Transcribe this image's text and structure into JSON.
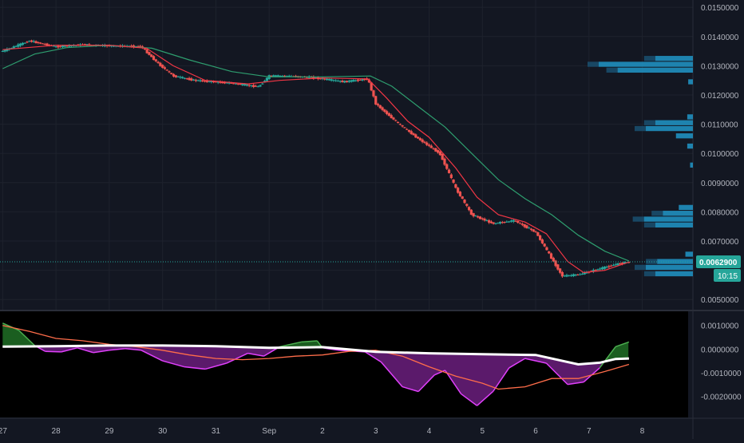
{
  "colors": {
    "background": "#131722",
    "indicator_background": "#000000",
    "up": "#26a69a",
    "down": "#ef5350",
    "ma_fast": "#f23645",
    "ma_slow": "#2e9e6f",
    "volume_profile": "#2196c8",
    "osc_main": "#ffffff",
    "osc_fill_neg": "#5b1a6b",
    "osc_fill_pos": "#1b5e20",
    "osc_line_neg": "#e040fb",
    "osc_line_pos": "#4caf50",
    "osc_signal": "#ff6d4a",
    "axis_text": "#b2b5be",
    "price_label_bg": "#26a69a"
  },
  "chart_data": [
    {
      "type": "candlestick",
      "name": "price",
      "price_axis": {
        "ticks": [
          0.005,
          0.006,
          0.007,
          0.008,
          0.009,
          0.01,
          0.011,
          0.012,
          0.013,
          0.014,
          0.015
        ],
        "tick_labels": [
          "0.0050000",
          "",
          "0.0070000",
          "0.0080000",
          "0.0090000",
          "0.0100000",
          "0.0110000",
          "0.0120000",
          "0.0130000",
          "0.0140000",
          "0.0150000"
        ],
        "range": [
          0.00465,
          0.01525
        ]
      },
      "last_price": 0.00629,
      "last_price_label": "0.0062900",
      "countdown_label": "10:15",
      "x_axis": {
        "labels": [
          "27",
          "28",
          "29",
          "30",
          "31",
          "Sep",
          "2",
          "3",
          "4",
          "5",
          "6",
          "7",
          "8"
        ],
        "label_day_index": [
          0,
          1,
          2,
          3,
          4,
          5,
          6,
          7,
          8,
          9,
          10,
          11,
          12
        ],
        "day_range": [
          -0.05,
          12.95
        ]
      },
      "path_points": [
        [
          0.0,
          0.0135
        ],
        [
          0.5,
          0.01385
        ],
        [
          1.0,
          0.01365
        ],
        [
          1.5,
          0.01372
        ],
        [
          2.0,
          0.01368
        ],
        [
          2.6,
          0.01366
        ],
        [
          2.9,
          0.0131
        ],
        [
          3.2,
          0.01265
        ],
        [
          3.6,
          0.0125
        ],
        [
          4.3,
          0.0124
        ],
        [
          4.8,
          0.01228
        ],
        [
          5.0,
          0.01265
        ],
        [
          5.3,
          0.01265
        ],
        [
          5.8,
          0.0126
        ],
        [
          6.4,
          0.01245
        ],
        [
          6.85,
          0.01255
        ],
        [
          7.0,
          0.0117
        ],
        [
          7.4,
          0.01105
        ],
        [
          7.8,
          0.0105
        ],
        [
          8.2,
          0.01
        ],
        [
          8.5,
          0.0088
        ],
        [
          8.8,
          0.0079
        ],
        [
          9.2,
          0.0076
        ],
        [
          9.6,
          0.0077
        ],
        [
          10.0,
          0.0073
        ],
        [
          10.3,
          0.0064
        ],
        [
          10.5,
          0.0058
        ],
        [
          10.8,
          0.00585
        ],
        [
          11.2,
          0.00605
        ],
        [
          11.5,
          0.0062
        ],
        [
          11.75,
          0.00629
        ]
      ],
      "ma_fast_points": [
        [
          0.0,
          0.01355
        ],
        [
          1.0,
          0.0137
        ],
        [
          2.0,
          0.0137
        ],
        [
          2.7,
          0.0136
        ],
        [
          3.2,
          0.013
        ],
        [
          3.8,
          0.0125
        ],
        [
          4.6,
          0.01238
        ],
        [
          5.2,
          0.0125
        ],
        [
          6.0,
          0.01258
        ],
        [
          6.85,
          0.01255
        ],
        [
          7.2,
          0.0119
        ],
        [
          7.6,
          0.0111
        ],
        [
          8.0,
          0.01055
        ],
        [
          8.5,
          0.0095
        ],
        [
          8.9,
          0.0085
        ],
        [
          9.3,
          0.0079
        ],
        [
          9.8,
          0.00765
        ],
        [
          10.2,
          0.00725
        ],
        [
          10.6,
          0.0063
        ],
        [
          10.9,
          0.00592
        ],
        [
          11.3,
          0.006
        ],
        [
          11.75,
          0.00628
        ]
      ],
      "ma_slow_points": [
        [
          0.0,
          0.0129
        ],
        [
          0.6,
          0.0134
        ],
        [
          1.2,
          0.01362
        ],
        [
          2.0,
          0.0137
        ],
        [
          2.8,
          0.0136
        ],
        [
          3.5,
          0.0132
        ],
        [
          4.3,
          0.0128
        ],
        [
          5.0,
          0.01262
        ],
        [
          6.0,
          0.01262
        ],
        [
          6.9,
          0.01265
        ],
        [
          7.3,
          0.0123
        ],
        [
          7.8,
          0.0116
        ],
        [
          8.3,
          0.0109
        ],
        [
          8.8,
          0.01
        ],
        [
          9.3,
          0.0091
        ],
        [
          9.8,
          0.00845
        ],
        [
          10.3,
          0.0079
        ],
        [
          10.8,
          0.0072
        ],
        [
          11.3,
          0.00665
        ],
        [
          11.75,
          0.00632
        ]
      ],
      "volume_profile": [
        {
          "price": 0.01325,
          "value": 0.4
        },
        {
          "price": 0.01305,
          "value": 1.0
        },
        {
          "price": 0.01285,
          "value": 0.8
        },
        {
          "price": 0.01245,
          "value": 0.05
        },
        {
          "price": 0.01125,
          "value": 0.06
        },
        {
          "price": 0.01105,
          "value": 0.4
        },
        {
          "price": 0.01085,
          "value": 0.5
        },
        {
          "price": 0.0106,
          "value": 0.18
        },
        {
          "price": 0.01025,
          "value": 0.06
        },
        {
          "price": 0.0096,
          "value": 0.03
        },
        {
          "price": 0.00815,
          "value": 0.15
        },
        {
          "price": 0.00795,
          "value": 0.32
        },
        {
          "price": 0.00775,
          "value": 0.52
        },
        {
          "price": 0.00755,
          "value": 0.4
        },
        {
          "price": 0.00655,
          "value": 0.08
        },
        {
          "price": 0.0063,
          "value": 0.38
        },
        {
          "price": 0.0061,
          "value": 0.5
        },
        {
          "price": 0.00588,
          "value": 0.4
        }
      ]
    },
    {
      "type": "area",
      "name": "oscillator",
      "axis": {
        "ticks": [
          -0.002,
          -0.001,
          0.0,
          0.001
        ],
        "tick_labels": [
          "-0.0020000",
          "-0.0010000",
          "0.0000000",
          "0.0010000"
        ],
        "range": [
          -0.0029,
          0.0016
        ]
      },
      "histogram_points": [
        [
          0.0,
          0.0011
        ],
        [
          0.3,
          0.0008
        ],
        [
          0.6,
          0.00015
        ],
        [
          0.8,
          -0.0001
        ],
        [
          1.1,
          -0.00012
        ],
        [
          1.4,
          5e-05
        ],
        [
          1.7,
          -0.00015
        ],
        [
          2.0,
          -5e-05
        ],
        [
          2.3,
          2e-05
        ],
        [
          2.6,
          -5e-05
        ],
        [
          3.0,
          -0.0005
        ],
        [
          3.4,
          -0.00075
        ],
        [
          3.8,
          -0.00085
        ],
        [
          4.2,
          -0.0006
        ],
        [
          4.6,
          -0.00018
        ],
        [
          4.9,
          -0.0003
        ],
        [
          5.2,
          0.0001
        ],
        [
          5.6,
          0.0003
        ],
        [
          5.9,
          0.00035
        ],
        [
          6.0,
          5e-05
        ],
        [
          6.3,
          -5e-05
        ],
        [
          6.8,
          -0.00012
        ],
        [
          7.1,
          -0.00055
        ],
        [
          7.5,
          -0.0016
        ],
        [
          7.8,
          -0.0018
        ],
        [
          8.1,
          -0.0011
        ],
        [
          8.3,
          -0.0009
        ],
        [
          8.6,
          -0.0019
        ],
        [
          8.9,
          -0.0024
        ],
        [
          9.2,
          -0.0018
        ],
        [
          9.5,
          -0.0008
        ],
        [
          9.8,
          -0.0004
        ],
        [
          10.2,
          -0.0006
        ],
        [
          10.6,
          -0.0015
        ],
        [
          10.9,
          -0.0014
        ],
        [
          11.2,
          -0.0008
        ],
        [
          11.5,
          0.0001
        ],
        [
          11.75,
          0.0003
        ]
      ],
      "main_line_points": [
        [
          0.0,
          0.0001
        ],
        [
          1.0,
          0.00012
        ],
        [
          2.0,
          0.00015
        ],
        [
          3.0,
          0.00015
        ],
        [
          4.0,
          0.00012
        ],
        [
          5.0,
          5e-05
        ],
        [
          6.0,
          8e-05
        ],
        [
          7.0,
          -0.00012
        ],
        [
          8.0,
          -0.00018
        ],
        [
          9.0,
          -0.00022
        ],
        [
          10.0,
          -0.00025
        ],
        [
          10.8,
          -0.00065
        ],
        [
          11.2,
          -0.00058
        ],
        [
          11.5,
          -0.00042
        ],
        [
          11.75,
          -0.0004
        ]
      ],
      "signal_line_points": [
        [
          0.0,
          0.001
        ],
        [
          0.5,
          0.00075
        ],
        [
          1.0,
          0.00045
        ],
        [
          1.5,
          0.00035
        ],
        [
          2.0,
          0.0002
        ],
        [
          2.5,
          0.0001
        ],
        [
          3.0,
          -5e-05
        ],
        [
          3.5,
          -0.00025
        ],
        [
          4.0,
          -0.0004
        ],
        [
          4.5,
          -0.00045
        ],
        [
          5.0,
          -0.0004
        ],
        [
          5.5,
          -0.0003
        ],
        [
          6.0,
          -0.00025
        ],
        [
          6.5,
          -0.0001
        ],
        [
          7.0,
          -5e-05
        ],
        [
          7.5,
          -0.0003
        ],
        [
          8.0,
          -0.00075
        ],
        [
          8.5,
          -0.00115
        ],
        [
          9.0,
          -0.00145
        ],
        [
          9.3,
          -0.0017
        ],
        [
          9.8,
          -0.0016
        ],
        [
          10.3,
          -0.00125
        ],
        [
          10.8,
          -0.00125
        ],
        [
          11.3,
          -0.00095
        ],
        [
          11.75,
          -0.00065
        ]
      ]
    }
  ]
}
